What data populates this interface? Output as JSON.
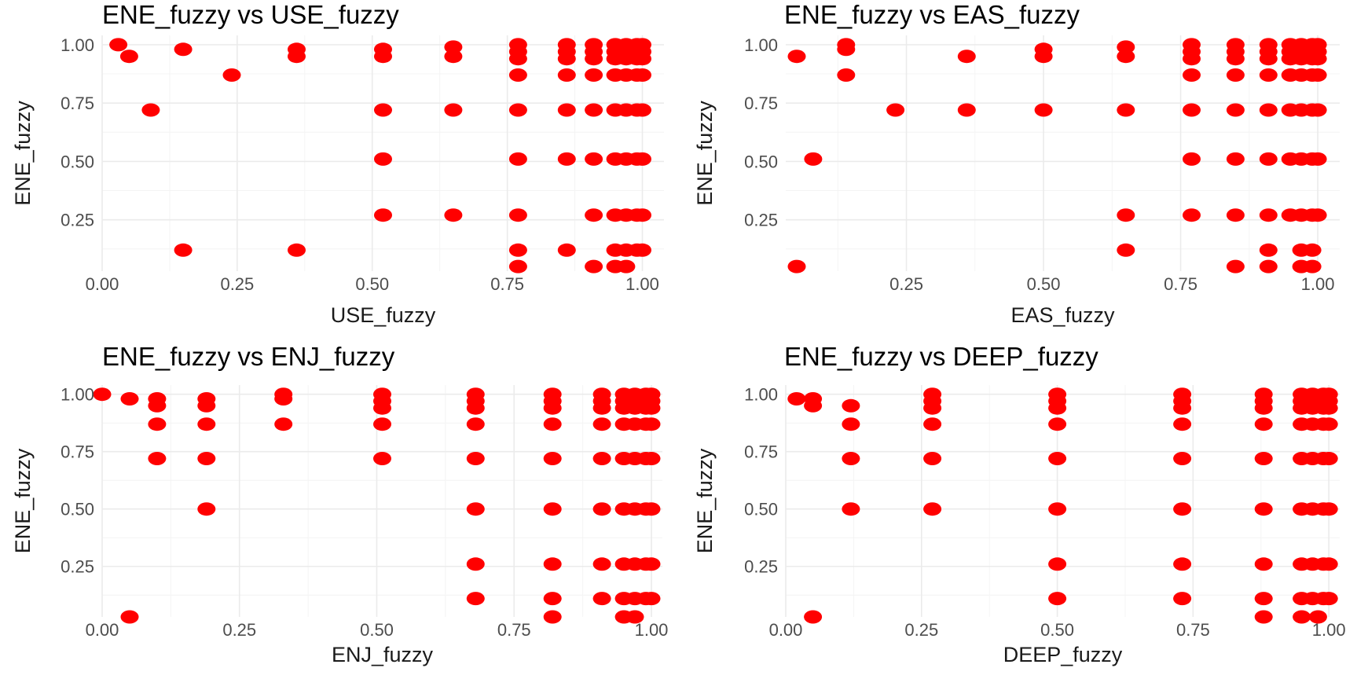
{
  "chart_data": [
    {
      "type": "scatter",
      "title": "ENE_fuzzy vs USE_fuzzy",
      "xlabel": "USE_fuzzy",
      "ylabel": "ENE_fuzzy",
      "xlim": [
        0,
        1.04
      ],
      "ylim": [
        0.03,
        1.04
      ],
      "xticks": [
        0.0,
        0.25,
        0.5,
        0.75,
        1.0
      ],
      "xtick_labels": [
        "0.00",
        "0.25",
        "0.50",
        "0.75",
        "1.00"
      ],
      "yticks": [
        0.25,
        0.5,
        0.75,
        1.0
      ],
      "ytick_labels": [
        "0.25",
        "0.50",
        "0.75",
        "1.00"
      ],
      "grid": true,
      "point_color": "#ff0000",
      "points": [
        [
          0.03,
          1.0
        ],
        [
          0.05,
          0.95
        ],
        [
          0.15,
          0.98
        ],
        [
          0.36,
          0.98
        ],
        [
          0.36,
          0.95
        ],
        [
          0.52,
          0.98
        ],
        [
          0.52,
          0.95
        ],
        [
          0.65,
          0.99
        ],
        [
          0.65,
          0.95
        ],
        [
          0.77,
          1.0
        ],
        [
          0.77,
          0.97
        ],
        [
          0.77,
          0.94
        ],
        [
          0.86,
          1.0
        ],
        [
          0.86,
          0.97
        ],
        [
          0.86,
          0.94
        ],
        [
          0.91,
          1.0
        ],
        [
          0.91,
          0.97
        ],
        [
          0.91,
          0.94
        ],
        [
          0.95,
          1.0
        ],
        [
          0.97,
          1.0
        ],
        [
          0.99,
          1.0
        ],
        [
          1.0,
          1.0
        ],
        [
          0.95,
          0.97
        ],
        [
          0.97,
          0.97
        ],
        [
          0.99,
          0.97
        ],
        [
          1.0,
          0.97
        ],
        [
          0.95,
          0.94
        ],
        [
          0.97,
          0.94
        ],
        [
          0.99,
          0.94
        ],
        [
          1.0,
          0.94
        ],
        [
          0.24,
          0.87
        ],
        [
          0.77,
          0.87
        ],
        [
          0.86,
          0.87
        ],
        [
          0.91,
          0.87
        ],
        [
          0.95,
          0.87
        ],
        [
          0.97,
          0.87
        ],
        [
          0.99,
          0.87
        ],
        [
          1.0,
          0.87
        ],
        [
          0.09,
          0.72
        ],
        [
          0.52,
          0.72
        ],
        [
          0.65,
          0.72
        ],
        [
          0.77,
          0.72
        ],
        [
          0.86,
          0.72
        ],
        [
          0.91,
          0.72
        ],
        [
          0.95,
          0.72
        ],
        [
          0.97,
          0.72
        ],
        [
          0.99,
          0.72
        ],
        [
          1.0,
          0.72
        ],
        [
          0.52,
          0.51
        ],
        [
          0.77,
          0.51
        ],
        [
          0.86,
          0.51
        ],
        [
          0.91,
          0.51
        ],
        [
          0.95,
          0.51
        ],
        [
          0.97,
          0.51
        ],
        [
          0.99,
          0.51
        ],
        [
          1.0,
          0.51
        ],
        [
          0.52,
          0.27
        ],
        [
          0.65,
          0.27
        ],
        [
          0.77,
          0.27
        ],
        [
          0.91,
          0.27
        ],
        [
          0.95,
          0.27
        ],
        [
          0.97,
          0.27
        ],
        [
          0.99,
          0.27
        ],
        [
          1.0,
          0.27
        ],
        [
          0.15,
          0.12
        ],
        [
          0.36,
          0.12
        ],
        [
          0.77,
          0.12
        ],
        [
          0.86,
          0.12
        ],
        [
          0.95,
          0.12
        ],
        [
          0.97,
          0.12
        ],
        [
          0.99,
          0.12
        ],
        [
          1.0,
          0.12
        ],
        [
          0.77,
          0.05
        ],
        [
          0.91,
          0.05
        ],
        [
          0.95,
          0.05
        ],
        [
          0.97,
          0.05
        ]
      ]
    },
    {
      "type": "scatter",
      "title": "ENE_fuzzy vs EAS_fuzzy",
      "xlabel": "EAS_fuzzy",
      "ylabel": "ENE_fuzzy",
      "xlim": [
        0.03,
        1.04
      ],
      "ylim": [
        0.03,
        1.04
      ],
      "xticks": [
        0.25,
        0.5,
        0.75,
        1.0
      ],
      "xtick_labels": [
        "0.25",
        "0.50",
        "0.75",
        "1.00"
      ],
      "yticks": [
        0.25,
        0.5,
        0.75,
        1.0
      ],
      "ytick_labels": [
        "0.25",
        "0.50",
        "0.75",
        "1.00"
      ],
      "grid": true,
      "point_color": "#ff0000",
      "points": [
        [
          0.05,
          0.95
        ],
        [
          0.14,
          1.0
        ],
        [
          0.14,
          0.98
        ],
        [
          0.36,
          0.95
        ],
        [
          0.5,
          0.98
        ],
        [
          0.5,
          0.95
        ],
        [
          0.65,
          0.99
        ],
        [
          0.65,
          0.95
        ],
        [
          0.77,
          1.0
        ],
        [
          0.77,
          0.97
        ],
        [
          0.77,
          0.94
        ],
        [
          0.85,
          1.0
        ],
        [
          0.85,
          0.97
        ],
        [
          0.85,
          0.94
        ],
        [
          0.91,
          1.0
        ],
        [
          0.91,
          0.97
        ],
        [
          0.91,
          0.94
        ],
        [
          0.95,
          1.0
        ],
        [
          0.97,
          1.0
        ],
        [
          0.99,
          1.0
        ],
        [
          1.0,
          1.0
        ],
        [
          0.95,
          0.97
        ],
        [
          0.97,
          0.97
        ],
        [
          0.99,
          0.97
        ],
        [
          1.0,
          0.97
        ],
        [
          0.95,
          0.94
        ],
        [
          0.97,
          0.94
        ],
        [
          0.99,
          0.94
        ],
        [
          1.0,
          0.94
        ],
        [
          0.14,
          0.87
        ],
        [
          0.77,
          0.87
        ],
        [
          0.85,
          0.87
        ],
        [
          0.91,
          0.87
        ],
        [
          0.95,
          0.87
        ],
        [
          0.97,
          0.87
        ],
        [
          0.99,
          0.87
        ],
        [
          1.0,
          0.87
        ],
        [
          0.23,
          0.72
        ],
        [
          0.36,
          0.72
        ],
        [
          0.5,
          0.72
        ],
        [
          0.65,
          0.72
        ],
        [
          0.77,
          0.72
        ],
        [
          0.85,
          0.72
        ],
        [
          0.91,
          0.72
        ],
        [
          0.95,
          0.72
        ],
        [
          0.97,
          0.72
        ],
        [
          0.99,
          0.72
        ],
        [
          1.0,
          0.72
        ],
        [
          0.08,
          0.51
        ],
        [
          0.77,
          0.51
        ],
        [
          0.85,
          0.51
        ],
        [
          0.91,
          0.51
        ],
        [
          0.95,
          0.51
        ],
        [
          0.97,
          0.51
        ],
        [
          0.99,
          0.51
        ],
        [
          1.0,
          0.51
        ],
        [
          0.65,
          0.27
        ],
        [
          0.77,
          0.27
        ],
        [
          0.85,
          0.27
        ],
        [
          0.91,
          0.27
        ],
        [
          0.95,
          0.27
        ],
        [
          0.97,
          0.27
        ],
        [
          0.99,
          0.27
        ],
        [
          1.0,
          0.27
        ],
        [
          0.65,
          0.12
        ],
        [
          0.91,
          0.12
        ],
        [
          0.97,
          0.12
        ],
        [
          0.99,
          0.12
        ],
        [
          0.05,
          0.05
        ],
        [
          0.85,
          0.05
        ],
        [
          0.91,
          0.05
        ],
        [
          0.97,
          0.05
        ],
        [
          0.99,
          0.05
        ]
      ]
    },
    {
      "type": "scatter",
      "title": "ENE_fuzzy vs ENJ_fuzzy",
      "xlabel": "ENJ_fuzzy",
      "ylabel": "ENE_fuzzy",
      "xlim": [
        0,
        1.02
      ],
      "ylim": [
        0.03,
        1.04
      ],
      "xticks": [
        0.0,
        0.25,
        0.5,
        0.75,
        1.0
      ],
      "xtick_labels": [
        "0.00",
        "0.25",
        "0.50",
        "0.75",
        "1.00"
      ],
      "yticks": [
        0.25,
        0.5,
        0.75,
        1.0
      ],
      "ytick_labels": [
        "0.25",
        "0.50",
        "0.75",
        "1.00"
      ],
      "grid": true,
      "point_color": "#ff0000",
      "points": [
        [
          0.0,
          1.0
        ],
        [
          0.05,
          0.98
        ],
        [
          0.1,
          0.98
        ],
        [
          0.1,
          0.95
        ],
        [
          0.19,
          0.98
        ],
        [
          0.19,
          0.95
        ],
        [
          0.33,
          1.0
        ],
        [
          0.33,
          0.98
        ],
        [
          0.51,
          1.0
        ],
        [
          0.51,
          0.97
        ],
        [
          0.51,
          0.94
        ],
        [
          0.68,
          1.0
        ],
        [
          0.68,
          0.97
        ],
        [
          0.68,
          0.94
        ],
        [
          0.82,
          1.0
        ],
        [
          0.82,
          0.97
        ],
        [
          0.82,
          0.94
        ],
        [
          0.91,
          1.0
        ],
        [
          0.91,
          0.97
        ],
        [
          0.91,
          0.94
        ],
        [
          0.95,
          1.0
        ],
        [
          0.97,
          1.0
        ],
        [
          0.99,
          1.0
        ],
        [
          1.0,
          1.0
        ],
        [
          0.95,
          0.97
        ],
        [
          0.97,
          0.97
        ],
        [
          0.99,
          0.97
        ],
        [
          1.0,
          0.97
        ],
        [
          0.95,
          0.94
        ],
        [
          0.97,
          0.94
        ],
        [
          0.99,
          0.94
        ],
        [
          1.0,
          0.94
        ],
        [
          0.1,
          0.87
        ],
        [
          0.19,
          0.87
        ],
        [
          0.33,
          0.87
        ],
        [
          0.51,
          0.87
        ],
        [
          0.68,
          0.87
        ],
        [
          0.82,
          0.87
        ],
        [
          0.91,
          0.87
        ],
        [
          0.95,
          0.87
        ],
        [
          0.97,
          0.87
        ],
        [
          0.99,
          0.87
        ],
        [
          1.0,
          0.87
        ],
        [
          0.1,
          0.72
        ],
        [
          0.19,
          0.72
        ],
        [
          0.51,
          0.72
        ],
        [
          0.68,
          0.72
        ],
        [
          0.82,
          0.72
        ],
        [
          0.91,
          0.72
        ],
        [
          0.95,
          0.72
        ],
        [
          0.97,
          0.72
        ],
        [
          0.99,
          0.72
        ],
        [
          1.0,
          0.72
        ],
        [
          0.19,
          0.5
        ],
        [
          0.68,
          0.5
        ],
        [
          0.82,
          0.5
        ],
        [
          0.91,
          0.5
        ],
        [
          0.95,
          0.5
        ],
        [
          0.97,
          0.5
        ],
        [
          0.99,
          0.5
        ],
        [
          1.0,
          0.5
        ],
        [
          0.68,
          0.26
        ],
        [
          0.82,
          0.26
        ],
        [
          0.91,
          0.26
        ],
        [
          0.95,
          0.26
        ],
        [
          0.97,
          0.26
        ],
        [
          0.99,
          0.26
        ],
        [
          1.0,
          0.26
        ],
        [
          0.68,
          0.11
        ],
        [
          0.82,
          0.11
        ],
        [
          0.91,
          0.11
        ],
        [
          0.95,
          0.11
        ],
        [
          0.97,
          0.11
        ],
        [
          0.99,
          0.11
        ],
        [
          1.0,
          0.11
        ],
        [
          0.05,
          0.03
        ],
        [
          0.82,
          0.03
        ],
        [
          0.95,
          0.03
        ],
        [
          0.97,
          0.03
        ]
      ]
    },
    {
      "type": "scatter",
      "title": "ENE_fuzzy vs DEEP_fuzzy",
      "xlabel": "DEEP_fuzzy",
      "ylabel": "ENE_fuzzy",
      "xlim": [
        0,
        1.02
      ],
      "ylim": [
        0.03,
        1.04
      ],
      "xticks": [
        0.0,
        0.25,
        0.5,
        0.75,
        1.0
      ],
      "xtick_labels": [
        "0.00",
        "0.25",
        "0.50",
        "0.75",
        "1.00"
      ],
      "yticks": [
        0.25,
        0.5,
        0.75,
        1.0
      ],
      "ytick_labels": [
        "0.25",
        "0.50",
        "0.75",
        "1.00"
      ],
      "grid": true,
      "point_color": "#ff0000",
      "points": [
        [
          0.02,
          0.98
        ],
        [
          0.05,
          0.98
        ],
        [
          0.05,
          0.95
        ],
        [
          0.12,
          0.95
        ],
        [
          0.27,
          1.0
        ],
        [
          0.27,
          0.97
        ],
        [
          0.27,
          0.94
        ],
        [
          0.5,
          1.0
        ],
        [
          0.5,
          0.97
        ],
        [
          0.5,
          0.94
        ],
        [
          0.73,
          1.0
        ],
        [
          0.73,
          0.97
        ],
        [
          0.73,
          0.94
        ],
        [
          0.88,
          1.0
        ],
        [
          0.88,
          0.97
        ],
        [
          0.88,
          0.94
        ],
        [
          0.95,
          1.0
        ],
        [
          0.97,
          1.0
        ],
        [
          0.99,
          1.0
        ],
        [
          1.0,
          1.0
        ],
        [
          0.95,
          0.97
        ],
        [
          0.97,
          0.97
        ],
        [
          0.99,
          0.97
        ],
        [
          1.0,
          0.97
        ],
        [
          0.95,
          0.94
        ],
        [
          0.97,
          0.94
        ],
        [
          0.99,
          0.94
        ],
        [
          1.0,
          0.94
        ],
        [
          0.12,
          0.87
        ],
        [
          0.27,
          0.87
        ],
        [
          0.5,
          0.87
        ],
        [
          0.73,
          0.87
        ],
        [
          0.88,
          0.87
        ],
        [
          0.95,
          0.87
        ],
        [
          0.97,
          0.87
        ],
        [
          0.99,
          0.87
        ],
        [
          1.0,
          0.87
        ],
        [
          0.12,
          0.72
        ],
        [
          0.27,
          0.72
        ],
        [
          0.5,
          0.72
        ],
        [
          0.73,
          0.72
        ],
        [
          0.88,
          0.72
        ],
        [
          0.95,
          0.72
        ],
        [
          0.97,
          0.72
        ],
        [
          0.99,
          0.72
        ],
        [
          1.0,
          0.72
        ],
        [
          0.12,
          0.5
        ],
        [
          0.27,
          0.5
        ],
        [
          0.5,
          0.5
        ],
        [
          0.73,
          0.5
        ],
        [
          0.88,
          0.5
        ],
        [
          0.95,
          0.5
        ],
        [
          0.97,
          0.5
        ],
        [
          0.99,
          0.5
        ],
        [
          1.0,
          0.5
        ],
        [
          0.5,
          0.26
        ],
        [
          0.73,
          0.26
        ],
        [
          0.88,
          0.26
        ],
        [
          0.95,
          0.26
        ],
        [
          0.97,
          0.26
        ],
        [
          0.99,
          0.26
        ],
        [
          1.0,
          0.26
        ],
        [
          0.5,
          0.11
        ],
        [
          0.73,
          0.11
        ],
        [
          0.88,
          0.11
        ],
        [
          0.95,
          0.11
        ],
        [
          0.97,
          0.11
        ],
        [
          0.99,
          0.11
        ],
        [
          1.0,
          0.11
        ],
        [
          0.05,
          0.03
        ],
        [
          0.88,
          0.03
        ],
        [
          0.95,
          0.03
        ],
        [
          0.98,
          0.03
        ]
      ]
    }
  ]
}
